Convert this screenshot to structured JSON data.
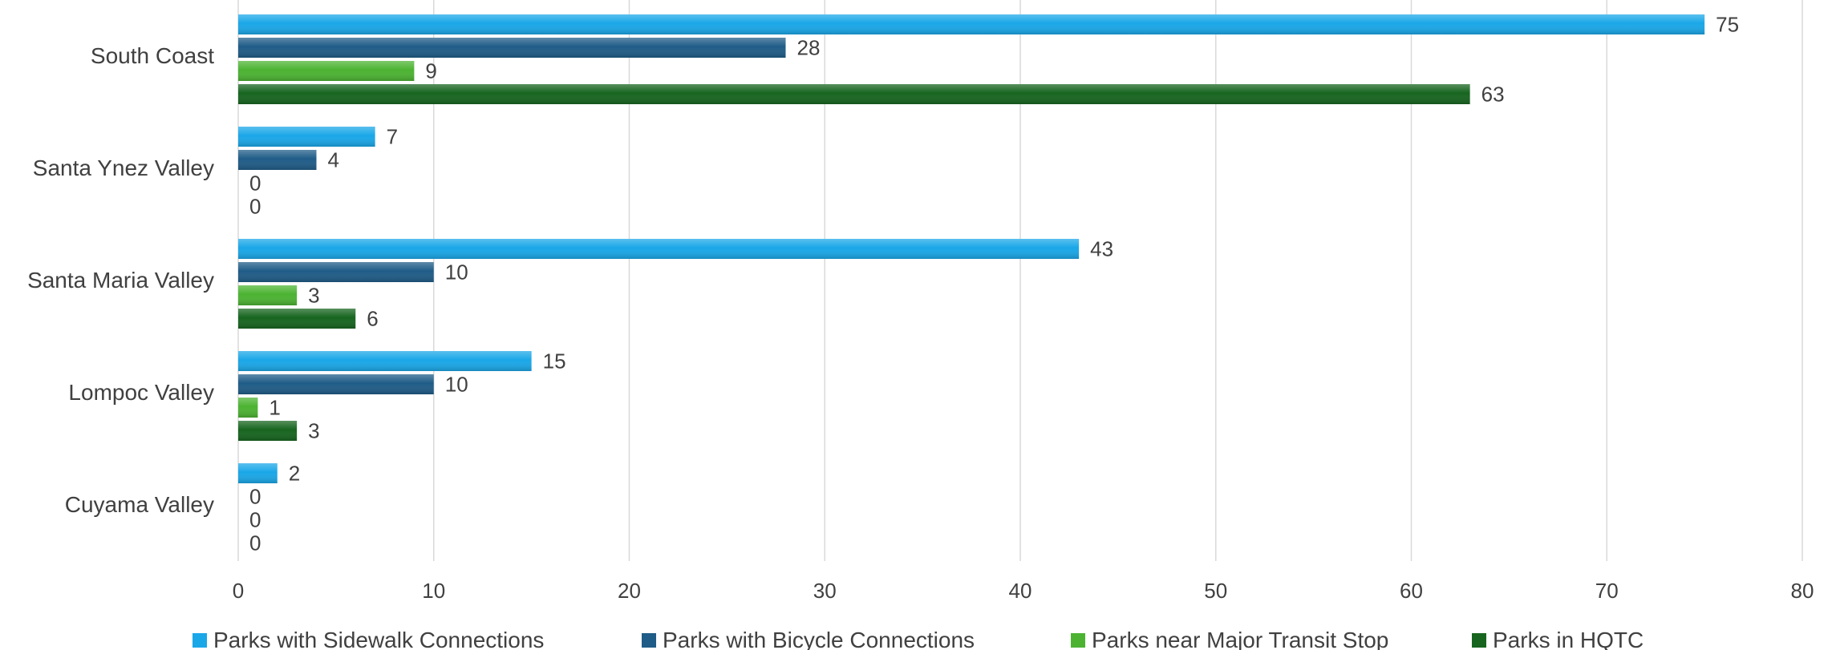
{
  "chart_data": {
    "type": "bar",
    "orientation": "horizontal",
    "title": "",
    "xlabel": "",
    "ylabel": "",
    "categories": [
      "South Coast",
      "Santa Ynez Valley",
      "Santa Maria Valley",
      "Lompoc Valley",
      "Cuyama Valley"
    ],
    "series": [
      {
        "name": "Parks with Sidewalk Connections",
        "color": "#1AA7E8",
        "values": [
          75,
          7,
          43,
          15,
          2
        ]
      },
      {
        "name": "Parks with Bicycle Connections",
        "color": "#1F5C87",
        "values": [
          28,
          4,
          10,
          10,
          0
        ]
      },
      {
        "name": "Parks near Major Transit Stop",
        "color": "#4CB332",
        "values": [
          9,
          0,
          3,
          1,
          0
        ]
      },
      {
        "name": "Parks in HQTC",
        "color": "#17651F",
        "values": [
          63,
          0,
          6,
          3,
          0
        ]
      }
    ],
    "xlim": [
      0,
      80
    ],
    "xticks": [
      0,
      10,
      20,
      30,
      40,
      50,
      60,
      70,
      80
    ],
    "grid": "vertical",
    "legend_position": "bottom",
    "data_labels": true
  }
}
